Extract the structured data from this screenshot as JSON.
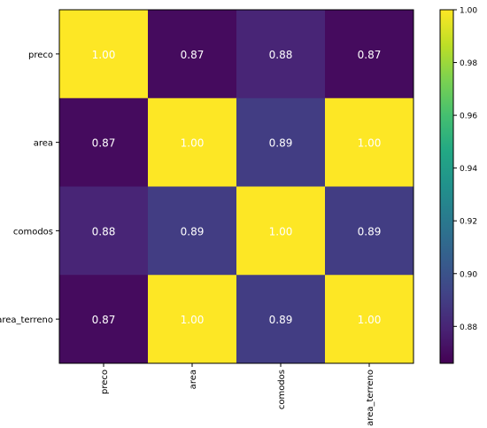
{
  "chart_data": {
    "type": "heatmap",
    "title": "",
    "xlabel": "",
    "ylabel": "",
    "row_labels": [
      "preco",
      "area",
      "comodos",
      "area_terreno"
    ],
    "col_labels": [
      "preco",
      "area",
      "comodos",
      "area_terreno"
    ],
    "values": [
      [
        1.0,
        0.87,
        0.88,
        0.87
      ],
      [
        0.87,
        1.0,
        0.89,
        1.0
      ],
      [
        0.88,
        0.89,
        1.0,
        0.89
      ],
      [
        0.87,
        1.0,
        0.89,
        1.0
      ]
    ],
    "cell_labels": [
      [
        "1.00",
        "0.87",
        "0.88",
        "0.87"
      ],
      [
        "0.87",
        "1.00",
        "0.89",
        "1.00"
      ],
      [
        "0.88",
        "0.89",
        "1.00",
        "0.89"
      ],
      [
        "0.87",
        "1.00",
        "0.89",
        "1.00"
      ]
    ],
    "colormap": "viridis",
    "colorbar": {
      "min": 0.866,
      "max": 1.0,
      "ticks": [
        0.88,
        0.9,
        0.92,
        0.94,
        0.96,
        0.98,
        1.0
      ],
      "tick_labels": [
        "0.88",
        "0.90",
        "0.92",
        "0.94",
        "0.96",
        "0.98",
        "1.00"
      ]
    },
    "grid": false
  }
}
